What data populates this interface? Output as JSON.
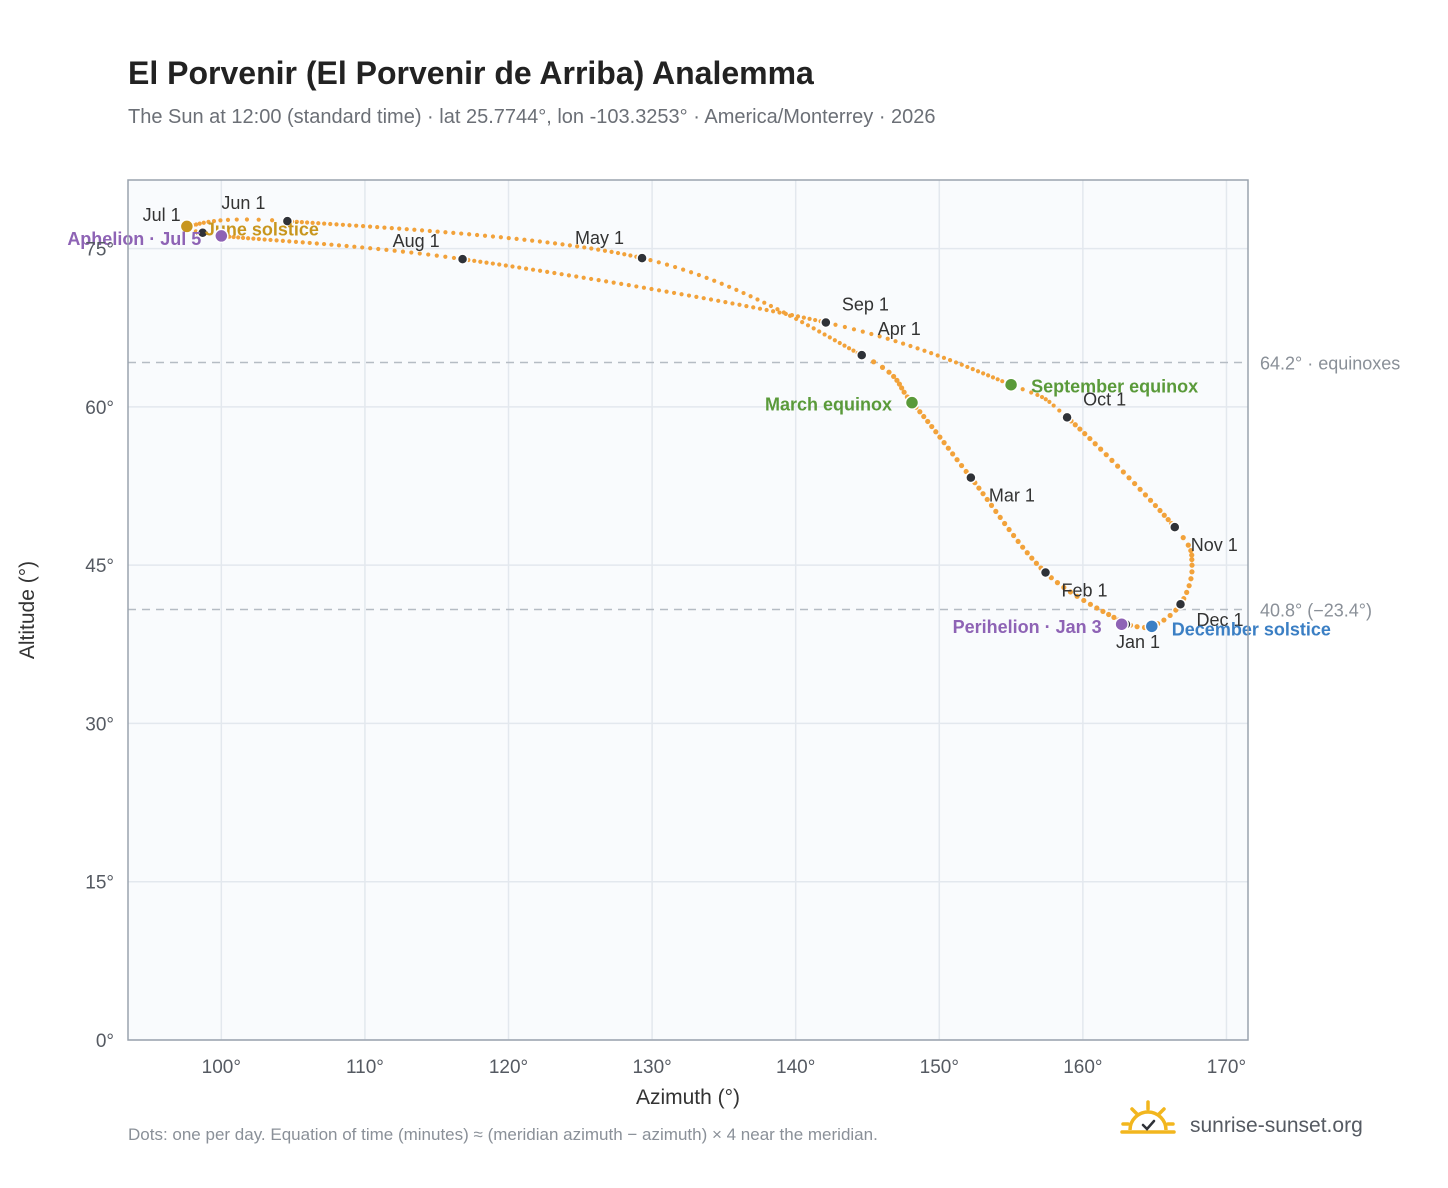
{
  "chart_data": {
    "type": "scatter",
    "title": "El Porvenir (El Porvenir de Arriba) Analemma",
    "subtitle": "The Sun at 12:00 (standard time) · lat 25.7744°, lon -103.3253° · America/Monterrey · 2026",
    "xlabel": "Azimuth (°)",
    "ylabel": "Altitude (°)",
    "xlim": [
      93.5,
      171.5
    ],
    "ylim": [
      0,
      81.5
    ],
    "x_ticks": [
      100,
      110,
      120,
      130,
      140,
      150,
      160,
      170
    ],
    "x_tick_labels": [
      "100°",
      "110°",
      "120°",
      "130°",
      "140°",
      "150°",
      "160°",
      "170°"
    ],
    "y_ticks": [
      0,
      15,
      30,
      45,
      60,
      75
    ],
    "y_tick_labels": [
      "0°",
      "15°",
      "30°",
      "45°",
      "60°",
      "75°"
    ],
    "grid": true,
    "colors": {
      "path": "#f2a23a",
      "month_dot": "#2f3238",
      "equinox": "#5a9a3a",
      "solstice_summer": "#c8961e",
      "solstice_winter": "#3b7fc4",
      "apsis": "#8e63b5",
      "reference_line": "#b5bcc4",
      "plot_background": "#f9fbfd",
      "frame": "#9aa3ae"
    },
    "month_markers": [
      {
        "label": "Jan 1",
        "az": 163.0,
        "alt": 39.4
      },
      {
        "label": "Feb 1",
        "az": 157.4,
        "alt": 44.3
      },
      {
        "label": "Mar 1",
        "az": 152.2,
        "alt": 53.3
      },
      {
        "label": "Apr 1",
        "az": 144.6,
        "alt": 64.9
      },
      {
        "label": "May 1",
        "az": 129.3,
        "alt": 74.1
      },
      {
        "label": "Jun 1",
        "az": 104.6,
        "alt": 77.6
      },
      {
        "label": "Jul 1",
        "az": 98.7,
        "alt": 76.5
      },
      {
        "label": "Aug 1",
        "az": 116.8,
        "alt": 74.0
      },
      {
        "label": "Sep 1",
        "az": 142.1,
        "alt": 68.0
      },
      {
        "label": "Oct 1",
        "az": 158.9,
        "alt": 59.0
      },
      {
        "label": "Nov 1",
        "az": 166.4,
        "alt": 48.6
      },
      {
        "label": "Dec 1",
        "az": 166.8,
        "alt": 41.3
      }
    ],
    "key_points": [
      {
        "label": "March equinox",
        "az": 148.1,
        "alt": 60.4,
        "kind": "equinox"
      },
      {
        "label": "September equinox",
        "az": 155.0,
        "alt": 62.1,
        "kind": "equinox"
      },
      {
        "label": "June solstice",
        "az": 97.6,
        "alt": 77.1,
        "kind": "solstice_summer"
      },
      {
        "label": "December solstice",
        "az": 164.8,
        "alt": 39.2,
        "kind": "solstice_winter"
      },
      {
        "label": "Aphelion · Jul 5",
        "az": 100.0,
        "alt": 76.2,
        "kind": "apsis"
      },
      {
        "label": "Perihelion · Jan 3",
        "az": 162.7,
        "alt": 39.4,
        "kind": "apsis"
      }
    ],
    "reference_lines": [
      {
        "alt": 64.2,
        "label": "64.2° · equinoxes"
      },
      {
        "alt": 40.8,
        "label": "40.8° (−23.4°)"
      }
    ],
    "curve_control": [
      [
        163.0,
        39.4
      ],
      [
        157.4,
        44.3
      ],
      [
        152.2,
        53.3
      ],
      [
        148.1,
        60.4
      ],
      [
        144.6,
        64.9
      ],
      [
        129.3,
        74.1
      ],
      [
        104.6,
        77.6
      ],
      [
        97.6,
        77.1
      ],
      [
        98.7,
        76.5
      ],
      [
        100.0,
        76.2
      ],
      [
        116.8,
        74.0
      ],
      [
        142.1,
        68.0
      ],
      [
        155.0,
        62.1
      ],
      [
        158.9,
        59.0
      ],
      [
        166.4,
        48.6
      ],
      [
        167.6,
        45.0
      ],
      [
        166.8,
        41.3
      ],
      [
        164.8,
        39.2
      ],
      [
        163.0,
        39.4
      ]
    ],
    "solid_segments": [
      {
        "from": 0,
        "to": 4
      },
      {
        "from": 13,
        "to": 18
      }
    ]
  },
  "footer": {
    "note": "Dots: one per day. Equation of time (minutes) ≈ (meridian azimuth − azimuth) × 4 near the meridian.",
    "brand": "sunrise-sunset.org",
    "logo_icon": "sun-logo-icon"
  }
}
